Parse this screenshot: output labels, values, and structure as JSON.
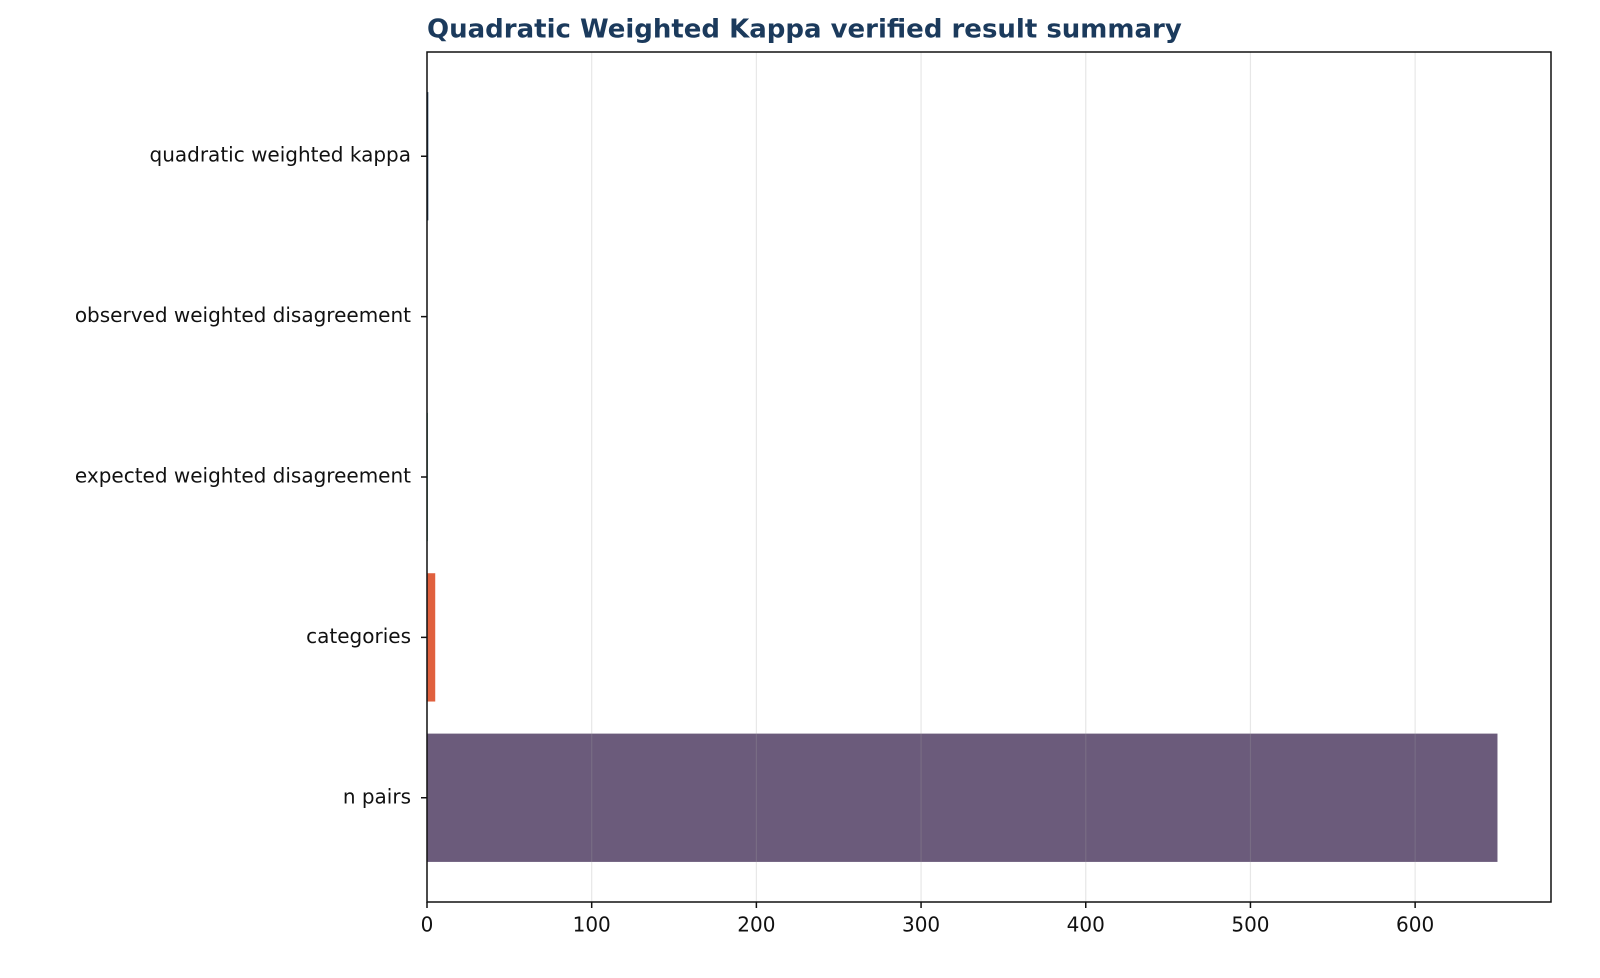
{
  "chart_data": {
    "type": "bar",
    "orientation": "horizontal",
    "title": "Quadratic Weighted Kappa verified result summary",
    "series": [
      {
        "name": null,
        "colors": [
          "#1b3a5c",
          "#2a7f8f",
          "#3b9c7a",
          "#e0603e",
          "#6b5b7b"
        ],
        "values": [
          0.8,
          0.1,
          0.5,
          5,
          650
        ]
      }
    ],
    "categories": [
      "quadratic weighted kappa",
      "observed weighted disagreement",
      "expected weighted disagreement",
      "categories",
      "n pairs"
    ],
    "xlim": [
      0,
      682.5
    ],
    "xticks": [
      0,
      100,
      200,
      300,
      400,
      500,
      600
    ],
    "grid": true
  }
}
